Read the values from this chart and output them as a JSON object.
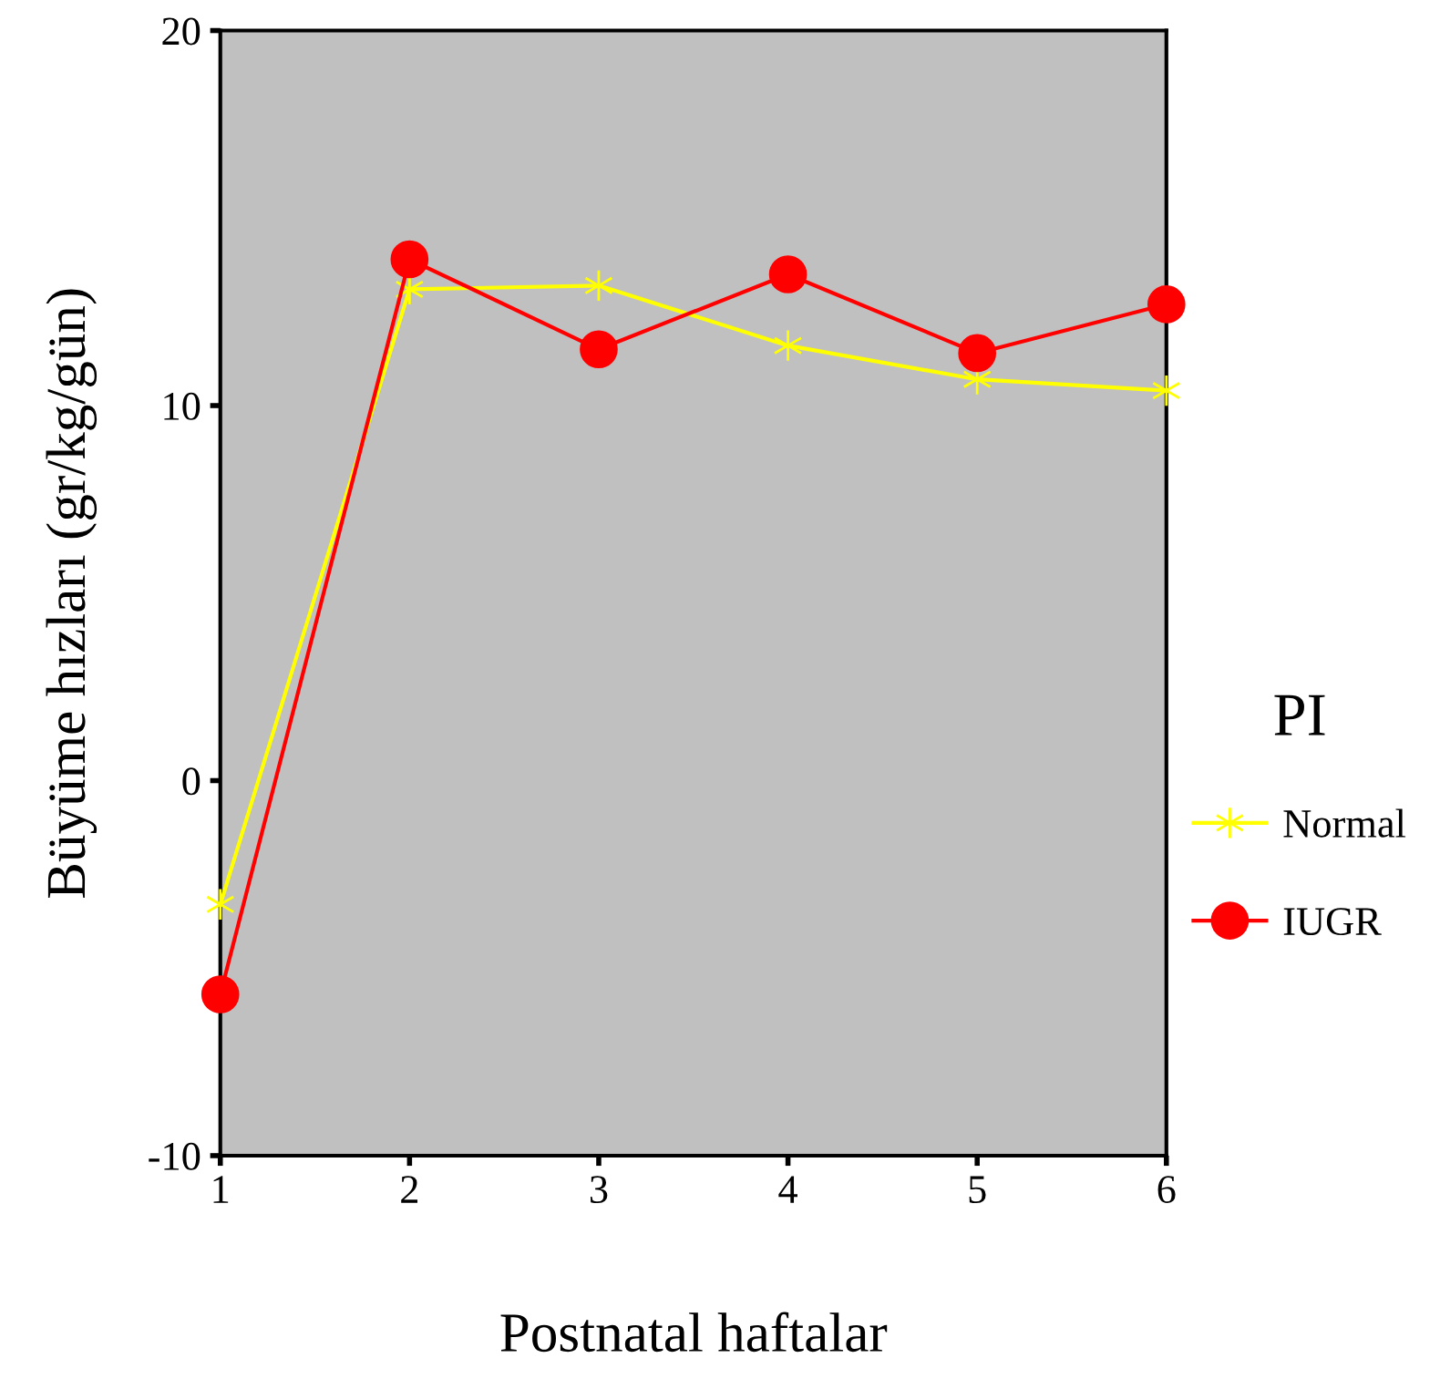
{
  "chart_data": {
    "type": "line",
    "xlabel": "Postnatal haftalar",
    "ylabel": "Büyüme hızları (gr/kg/gün)",
    "legend_title": "PI",
    "x": [
      1,
      2,
      3,
      4,
      5,
      6
    ],
    "xlim": [
      1,
      6
    ],
    "xticks": [
      1,
      2,
      3,
      4,
      5,
      6
    ],
    "ylim": [
      -10,
      20
    ],
    "yticks": [
      -10,
      0,
      10,
      20
    ],
    "series": [
      {
        "name": "Normal",
        "color": "#ffff00",
        "marker": "cross",
        "values": [
          -3.3,
          13.1,
          13.2,
          11.6,
          10.7,
          10.4
        ]
      },
      {
        "name": "IUGR",
        "color": "#ff0000",
        "marker": "circle",
        "values": [
          -5.7,
          13.9,
          11.5,
          13.5,
          11.4,
          12.7
        ]
      }
    ],
    "grid": false,
    "legend": "right",
    "line_style": "solid"
  }
}
